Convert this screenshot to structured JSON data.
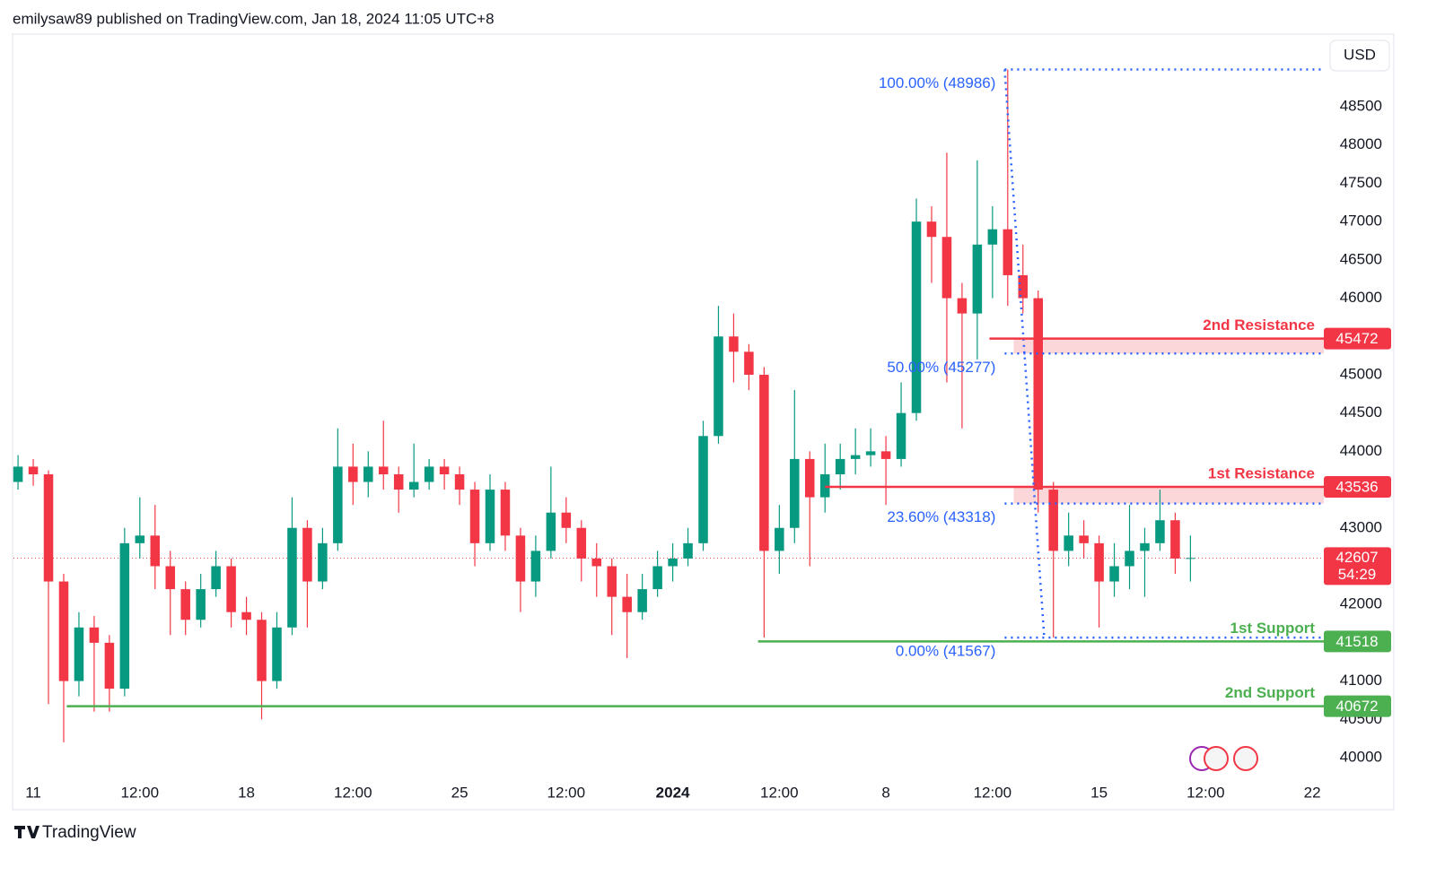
{
  "header": "emilysaw89 published on TradingView.com, Jan 18, 2024 11:05 UTC+8",
  "footer": "TradingView",
  "chart_data": {
    "type": "candlestick",
    "currency": "USD",
    "x": [
      -0.5,
      0,
      0.5,
      1,
      1.5,
      2,
      2.5,
      3,
      3.5,
      4,
      4.5,
      5,
      5.5,
      6,
      6.5,
      7,
      7.5,
      8,
      8.5,
      9,
      9.5,
      10,
      10.5,
      11,
      11.5,
      12,
      12.5,
      13,
      13.5,
      14,
      14.5,
      15,
      15.5,
      16,
      16.5,
      17,
      17.5,
      18,
      18.5,
      19,
      19.5,
      20,
      20.5,
      21,
      21.5,
      22,
      22.5,
      23,
      23.5,
      24,
      24.5,
      25,
      25.5,
      26,
      26.5,
      27,
      27.5,
      28,
      28.5,
      29,
      29.5,
      30,
      30.5,
      31,
      31.5,
      32,
      32.5,
      33,
      33.5,
      34,
      34.5,
      35,
      35.5,
      36,
      36.5,
      37,
      37.5,
      38
    ],
    "open": [
      43600,
      43800,
      43700,
      42300,
      41000,
      41700,
      41500,
      40900,
      42800,
      42900,
      42500,
      42200,
      41800,
      42200,
      42500,
      41900,
      41800,
      41000,
      41700,
      43000,
      42300,
      42800,
      43800,
      43600,
      43800,
      43700,
      43500,
      43600,
      43800,
      43700,
      43500,
      42800,
      43500,
      42900,
      42300,
      42700,
      43200,
      43000,
      42600,
      42500,
      42100,
      41900,
      42200,
      42500,
      42600,
      42800,
      44200,
      45500,
      45300,
      45000,
      42700,
      43000,
      43900,
      43400,
      43700,
      43900,
      43950,
      44000,
      43900,
      44500,
      47000,
      46800,
      46000,
      45800,
      46700,
      46900,
      46300,
      46000,
      43500,
      42700,
      42900,
      42800,
      42300,
      42500,
      42700,
      42800,
      43100,
      42600
    ],
    "high": [
      43950,
      43900,
      43750,
      42400,
      41900,
      41850,
      41600,
      43000,
      43400,
      43300,
      42700,
      42300,
      42400,
      42700,
      42600,
      42100,
      41900,
      41900,
      43400,
      43100,
      43000,
      44300,
      44100,
      44000,
      44400,
      43800,
      44100,
      43900,
      43900,
      43800,
      43600,
      43700,
      43600,
      43000,
      42900,
      43800,
      43400,
      43100,
      42800,
      42600,
      42400,
      42400,
      42700,
      42800,
      43000,
      44400,
      45900,
      45800,
      45400,
      45100,
      43300,
      44800,
      44000,
      44100,
      44100,
      44300,
      44300,
      44200,
      44900,
      47300,
      47200,
      47900,
      46200,
      47800,
      47200,
      48986,
      46700,
      46100,
      43600,
      43200,
      43100,
      42900,
      42800,
      43300,
      43000,
      43500,
      43200,
      42900
    ],
    "low": [
      43500,
      43550,
      40700,
      40200,
      40800,
      40600,
      40600,
      40800,
      42600,
      42200,
      41600,
      41600,
      41700,
      42100,
      41700,
      41600,
      40500,
      40900,
      41600,
      41700,
      42200,
      42700,
      43300,
      43400,
      43500,
      43200,
      43400,
      43500,
      43500,
      43300,
      42500,
      42700,
      42700,
      41900,
      42100,
      42600,
      42800,
      42300,
      42100,
      41600,
      41300,
      41800,
      42100,
      42300,
      42500,
      42700,
      44100,
      44900,
      44800,
      41567,
      42400,
      42800,
      42500,
      43200,
      43500,
      43700,
      43800,
      43300,
      43800,
      44400,
      46200,
      44900,
      44300,
      45200,
      46000,
      45900,
      45800,
      43200,
      41567,
      42500,
      42600,
      41700,
      42100,
      42200,
      42100,
      42700,
      42400,
      42300
    ],
    "close": [
      43800,
      43700,
      42300,
      41000,
      41700,
      41500,
      40900,
      42800,
      42900,
      42500,
      42200,
      41800,
      42200,
      42500,
      41900,
      41800,
      41000,
      41700,
      43000,
      42300,
      42800,
      43800,
      43600,
      43800,
      43700,
      43500,
      43600,
      43800,
      43700,
      43500,
      42800,
      43500,
      42900,
      42300,
      42700,
      43200,
      43000,
      42600,
      42500,
      42100,
      41900,
      42200,
      42500,
      42600,
      42800,
      44200,
      45500,
      45300,
      45000,
      42700,
      43000,
      43900,
      43400,
      43700,
      43900,
      43950,
      44000,
      43900,
      44500,
      47000,
      46800,
      46000,
      45800,
      46700,
      46900,
      46300,
      46000,
      43500,
      42700,
      42900,
      42800,
      42300,
      42500,
      42700,
      42800,
      43100,
      42600,
      42607
    ],
    "up_color": "#089981",
    "down_color": "#f23645",
    "xlim": [
      -0.65,
      42.38
    ],
    "xticks": [
      {
        "value": 0,
        "label": "11"
      },
      {
        "value": 3.5,
        "label": "12:00"
      },
      {
        "value": 7,
        "label": "18"
      },
      {
        "value": 10.5,
        "label": "12:00"
      },
      {
        "value": 14,
        "label": "25"
      },
      {
        "value": 17.5,
        "label": "12:00"
      },
      {
        "value": 21,
        "label": "2024"
      },
      {
        "value": 24.5,
        "label": "12:00"
      },
      {
        "value": 28,
        "label": "8"
      },
      {
        "value": 31.5,
        "label": "12:00"
      },
      {
        "value": 35,
        "label": "15"
      },
      {
        "value": 38.5,
        "label": "12:00"
      },
      {
        "value": 42,
        "label": "22"
      }
    ],
    "ylim": [
      39707,
      49449
    ],
    "yticks": [
      40000,
      40500,
      41000,
      41500,
      42000,
      42500,
      43000,
      43500,
      44000,
      44500,
      45000,
      45500,
      46000,
      46500,
      47000,
      47500,
      48000,
      48500
    ],
    "levels": [
      {
        "name": "2nd Resistance",
        "value": 45472,
        "color": "#f23645",
        "x_start": 31.4,
        "zone": true
      },
      {
        "name": "1st Resistance",
        "value": 43536,
        "color": "#f23645",
        "x_start": 26.0,
        "zone": true
      },
      {
        "name": "1st Support",
        "value": 41518,
        "color": "#4caf50",
        "x_start": 23.8,
        "zone": false
      },
      {
        "name": "2nd Support",
        "value": 40672,
        "color": "#4caf50",
        "x_start": 1.1,
        "zone": false
      }
    ],
    "fibonacci": {
      "color": "#2962ff",
      "x_start": 31.9,
      "x_end": 33.2,
      "levels": [
        {
          "value": 48986,
          "label": "100.00% (48986)"
        },
        {
          "value": 45277,
          "label": "50.00% (45277)"
        },
        {
          "value": 43318,
          "label": "23.60% (43318)"
        },
        {
          "value": 41567,
          "label": "0.00% (41567)"
        }
      ]
    },
    "last_price": {
      "value": 42607,
      "countdown": "54:29",
      "color": "#f23645"
    }
  }
}
